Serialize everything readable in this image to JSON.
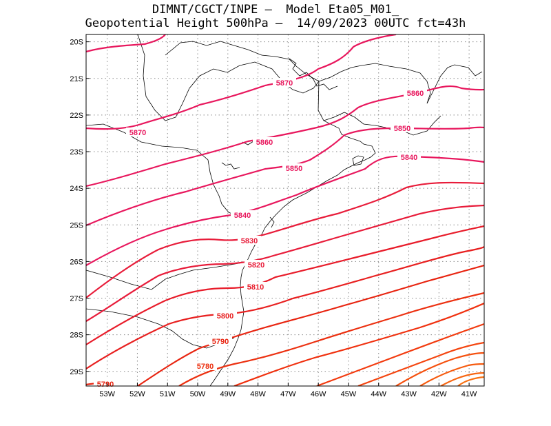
{
  "title": {
    "line1": "DIMNT/CGCT/INPE –  Model Eta05_M01_",
    "line2": "Geopotential Height 500hPa –  14/09/2023 00UTC fct=43h"
  },
  "axes": {
    "lat_ticks": [
      "20S",
      "21S",
      "22S",
      "23S",
      "24S",
      "25S",
      "26S",
      "27S",
      "28S",
      "29S"
    ],
    "lon_ticks": [
      "53W",
      "52W",
      "51W",
      "50W",
      "49W",
      "48W",
      "47W",
      "46W",
      "45W",
      "44W",
      "43W",
      "42W",
      "41W"
    ],
    "lon_range": [
      -53.7,
      -40.5
    ],
    "lat_range": [
      -29.4,
      -19.8
    ],
    "grid": "dotted"
  },
  "contours": [
    {
      "level": 5870,
      "color": "#e8175d",
      "labels": [
        "5870",
        "5870"
      ]
    },
    {
      "level": 5860,
      "color": "#e8175d",
      "labels": [
        "5860",
        "5860"
      ]
    },
    {
      "level": 5850,
      "color": "#e8175d",
      "labels": [
        "5850",
        "5850"
      ]
    },
    {
      "level": 5840,
      "color": "#e8175d",
      "labels": [
        "5840",
        "5840"
      ]
    },
    {
      "level": 5830,
      "color": "#e81c3a",
      "labels": [
        "5830"
      ]
    },
    {
      "level": 5820,
      "color": "#e81c3a",
      "labels": [
        "5820"
      ]
    },
    {
      "level": 5810,
      "color": "#e81c2a",
      "labels": [
        "5810"
      ]
    },
    {
      "level": 5800,
      "color": "#e82020",
      "labels": [
        "5800"
      ]
    },
    {
      "level": 5790,
      "color": "#e82410",
      "labels": [
        "5790",
        "5790"
      ]
    },
    {
      "level": 5780,
      "color": "#ec3010",
      "labels": [
        "5780"
      ]
    }
  ],
  "colors": {
    "high": "#e8175d",
    "low": "#f25a0e",
    "coast": "#000000",
    "grid": "#888888"
  }
}
